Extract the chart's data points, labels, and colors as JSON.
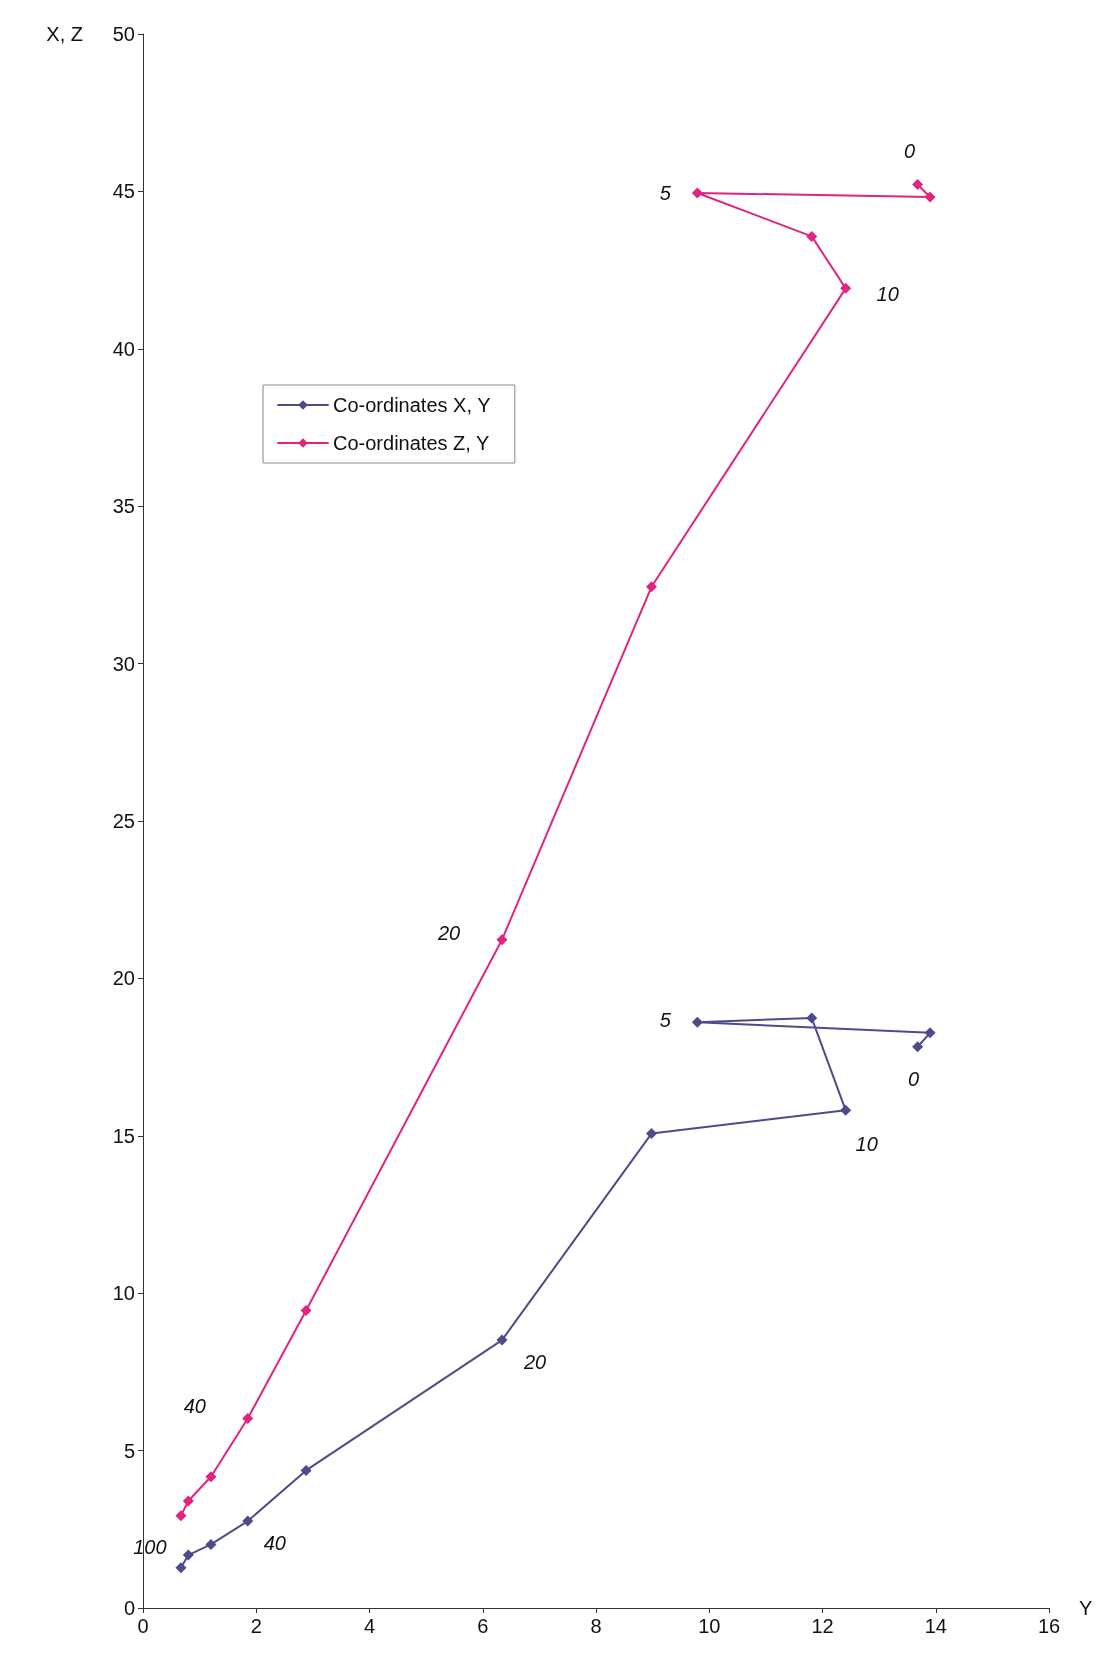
{
  "chart_data": {
    "type": "line",
    "xlabel": "Y",
    "ylabel": "X, Z",
    "xlim": [
      0,
      16
    ],
    "xticks": [
      0,
      2,
      4,
      6,
      8,
      10,
      12,
      14,
      16
    ],
    "ylim": [
      0,
      50
    ],
    "yticks": [
      0,
      5,
      10,
      15,
      20,
      25,
      30,
      35,
      40,
      45,
      50
    ],
    "grid": false,
    "legend": "top left",
    "marker": "diamond",
    "line_style": "solid",
    "series": [
      {
        "name": "Co-ordinates X, Y",
        "color": "#4d4b8c",
        "x": [
          13.68,
          13.9,
          9.79,
          11.81,
          12.41,
          8.98,
          6.34,
          2.88,
          1.85,
          1.2,
          0.8,
          0.67
        ],
        "values": [
          17.83,
          18.27,
          18.61,
          18.74,
          15.81,
          15.07,
          8.51,
          4.37,
          2.76,
          2.02,
          1.68,
          1.28
        ]
      },
      {
        "name": "Co-ordinates Z, Y",
        "color": "#e0247f",
        "x": [
          13.68,
          13.9,
          9.79,
          11.81,
          12.41,
          8.98,
          6.34,
          2.88,
          1.85,
          1.2,
          0.8,
          0.67
        ],
        "values": [
          45.22,
          44.82,
          44.95,
          43.57,
          41.92,
          32.44,
          21.23,
          9.45,
          6.02,
          4.17,
          3.4,
          2.93
        ]
      }
    ],
    "annotations": [
      {
        "text": "0",
        "x": 13.68,
        "y": 45.22
      },
      {
        "text": "5",
        "x": 9.79,
        "y": 44.95
      },
      {
        "text": "10",
        "x": 12.41,
        "y": 41.92
      },
      {
        "text": "20",
        "x": 6.34,
        "y": 21.23
      },
      {
        "text": "40",
        "x": 1.85,
        "y": 6.02
      },
      {
        "text": "5",
        "x": 9.79,
        "y": 18.61
      },
      {
        "text": "0",
        "x": 13.68,
        "y": 17.83
      },
      {
        "text": "10",
        "x": 12.41,
        "y": 15.81
      },
      {
        "text": "20",
        "x": 6.34,
        "y": 8.51
      },
      {
        "text": "40",
        "x": 1.85,
        "y": 2.76
      },
      {
        "text": "100",
        "x": 0.67,
        "y": 1.28
      }
    ]
  }
}
